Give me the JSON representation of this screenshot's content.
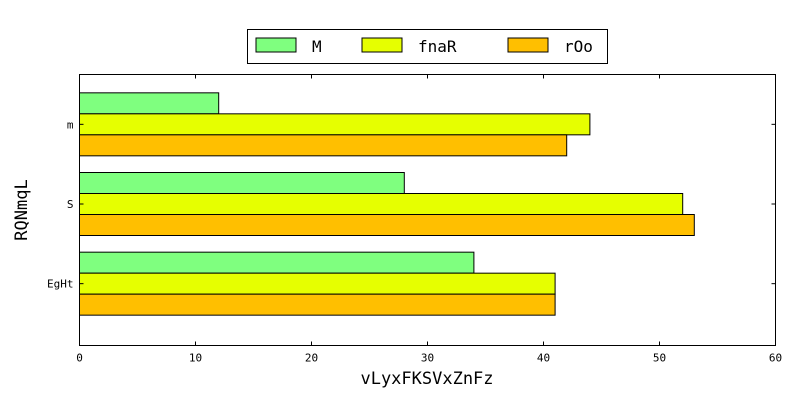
{
  "chart_data": {
    "type": "bar",
    "orientation": "horizontal",
    "title": "",
    "xlabel": "vLyxFKSVxZnFz",
    "ylabel": "RQNmqL",
    "categories": [
      "EgHt",
      "S",
      "m"
    ],
    "series": [
      {
        "name": "M",
        "color": "#7fff7f",
        "values": [
          34,
          28,
          12
        ]
      },
      {
        "name": "fnaR",
        "color": "#e6ff00",
        "values": [
          41,
          52,
          44
        ]
      },
      {
        "name": "rOo",
        "color": "#ffbf00",
        "values": [
          41,
          53,
          42
        ]
      }
    ],
    "xlim": [
      0,
      60
    ],
    "xticks": [
      0,
      10,
      20,
      30,
      40,
      50,
      60
    ],
    "grid": false,
    "legend_position": "top-center"
  }
}
